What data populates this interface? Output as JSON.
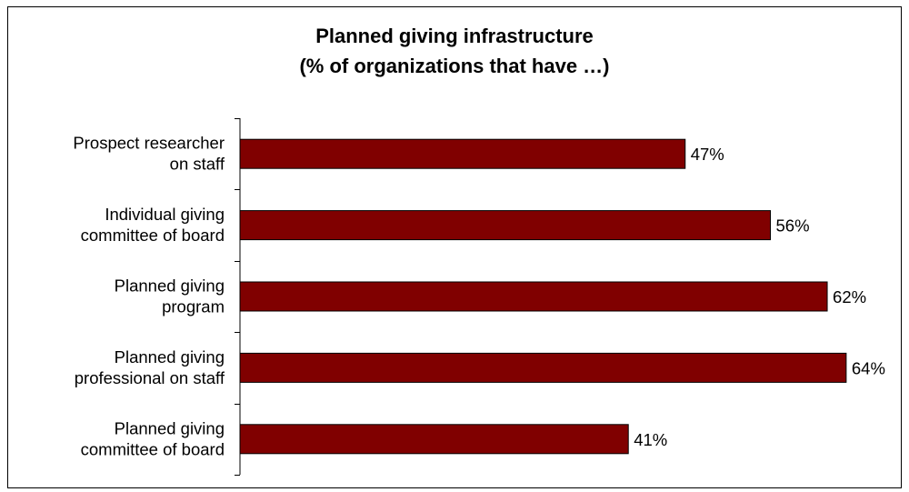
{
  "chart_data": {
    "type": "bar",
    "orientation": "horizontal",
    "title": "Planned giving infrastructure",
    "subtitle": "(% of organizations that have …)",
    "categories": [
      [
        "Prospect researcher",
        "on staff"
      ],
      [
        "Individual giving",
        "committee of board"
      ],
      [
        "Planned giving",
        "program"
      ],
      [
        "Planned giving",
        "professional on staff"
      ],
      [
        "Planned giving",
        "committee of board"
      ]
    ],
    "values": [
      47,
      56,
      62,
      64,
      41
    ],
    "data_labels": [
      "47%",
      "56%",
      "62%",
      "64%",
      "41%"
    ],
    "xlabel": "",
    "ylabel": "",
    "xlim": [
      0,
      100
    ],
    "grid": false,
    "legend": "none",
    "bar_color": "#800000",
    "bar_edge_color": "#000000"
  }
}
